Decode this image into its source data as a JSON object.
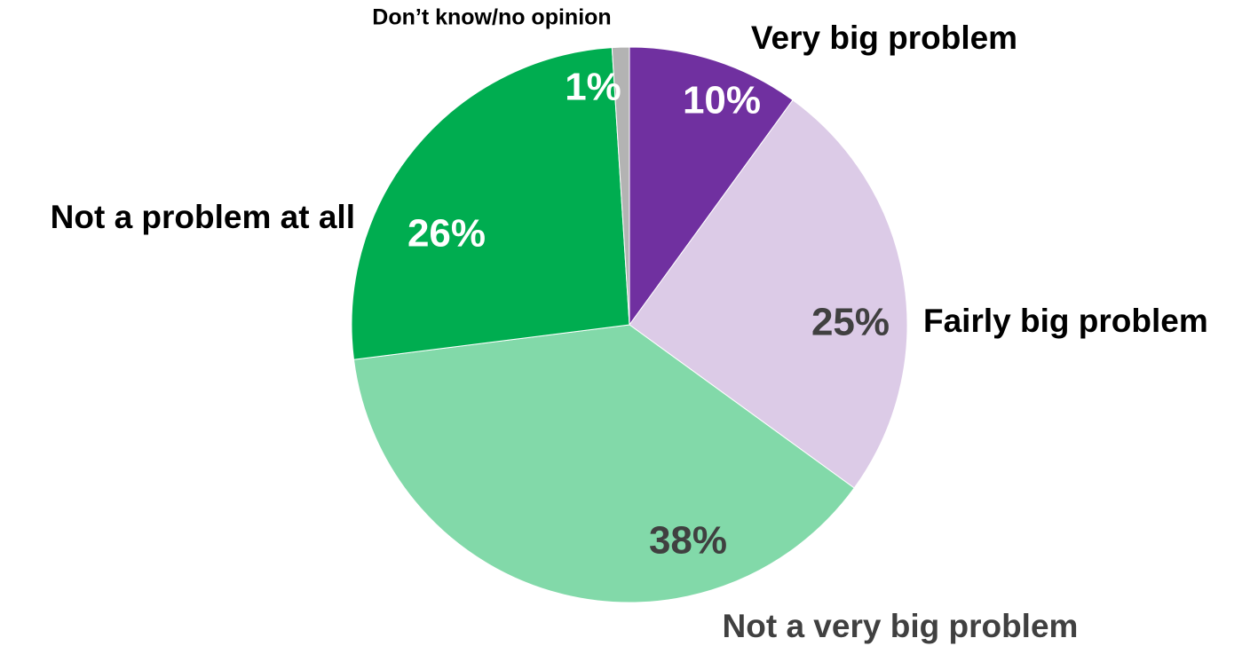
{
  "chart_data": {
    "type": "pie",
    "title": "",
    "start_angle_deg": 0,
    "direction": "clockwise",
    "legend": "none",
    "slices": [
      {
        "label": "Very big problem",
        "value": 10,
        "display": "10%",
        "color": "#7030A0",
        "value_label_color": "#ffffff",
        "category_label_color": "#000000"
      },
      {
        "label": "Fairly big problem",
        "value": 25,
        "display": "25%",
        "color": "#DCCBE7",
        "value_label_color": "#404040",
        "category_label_color": "#000000"
      },
      {
        "label": "Not a very big problem",
        "value": 38,
        "display": "38%",
        "color": "#82D9A9",
        "value_label_color": "#404040",
        "category_label_color": "#404040"
      },
      {
        "label": "Not a problem at all",
        "value": 26,
        "display": "26%",
        "color": "#00AD50",
        "value_label_color": "#ffffff",
        "category_label_color": "#000000"
      },
      {
        "label": "Don’t know/no opinion",
        "value": 1,
        "display": "1%",
        "color": "#B3B3B3",
        "value_label_color": "#ffffff",
        "category_label_color": "#000000"
      }
    ]
  }
}
